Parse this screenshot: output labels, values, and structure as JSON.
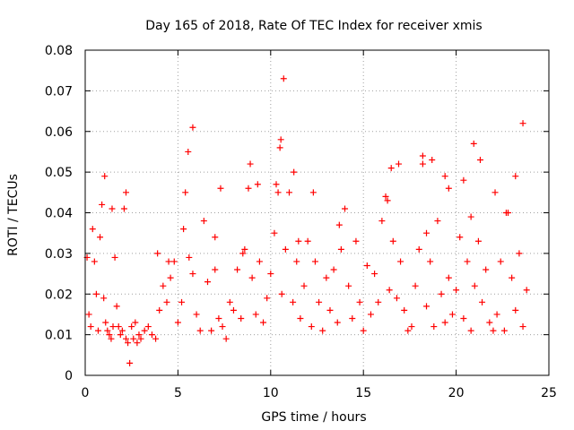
{
  "chart_data": {
    "type": "scatter",
    "title": "Day 165 of 2018, Rate Of TEC Index for receiver xmis",
    "xlabel": "GPS time / hours",
    "ylabel": "ROTI / TECUs",
    "xlim": [
      0,
      25
    ],
    "ylim": [
      0,
      0.08
    ],
    "x_ticks": [
      0,
      5,
      10,
      15,
      20,
      25
    ],
    "x_tick_labels": [
      "0",
      "5",
      "10",
      "15",
      "20",
      "25"
    ],
    "y_ticks": [
      0,
      0.01,
      0.02,
      0.03,
      0.04,
      0.05,
      0.06,
      0.07,
      0.08
    ],
    "y_tick_labels": [
      "0",
      "0.01",
      "0.02",
      "0.03",
      "0.04",
      "0.05",
      "0.06",
      "0.07",
      "0.08"
    ],
    "grid": true,
    "marker": "plus",
    "marker_color": "#ff0000",
    "series": [
      {
        "name": "ROTI",
        "x": [
          0.1,
          0.2,
          0.3,
          0.4,
          0.5,
          0.6,
          0.7,
          0.8,
          0.9,
          1.0,
          1.1,
          1.2,
          1.3,
          1.4,
          1.5,
          1.6,
          1.7,
          1.8,
          1.9,
          2.0,
          2.1,
          2.2,
          2.3,
          2.4,
          2.5,
          2.6,
          2.7,
          2.8,
          2.9,
          3.0,
          3.2,
          3.4,
          3.6,
          3.8,
          4.0,
          4.2,
          4.4,
          4.6,
          4.8,
          5.0,
          5.2,
          5.4,
          5.6,
          5.8,
          6.0,
          6.2,
          6.4,
          6.6,
          6.8,
          7.0,
          7.2,
          7.4,
          7.6,
          7.8,
          8.0,
          8.2,
          8.4,
          8.6,
          8.8,
          9.0,
          9.2,
          9.4,
          9.6,
          9.8,
          10.0,
          10.2,
          10.4,
          10.5,
          10.6,
          10.8,
          11.0,
          11.2,
          11.4,
          11.6,
          11.8,
          12.0,
          12.2,
          12.4,
          12.6,
          12.8,
          13.0,
          13.2,
          13.4,
          13.6,
          13.8,
          14.0,
          14.2,
          14.4,
          14.6,
          14.8,
          15.0,
          15.2,
          15.4,
          15.6,
          15.8,
          16.0,
          16.2,
          16.4,
          16.6,
          16.8,
          17.0,
          17.2,
          17.4,
          17.6,
          17.8,
          18.0,
          18.2,
          18.4,
          18.6,
          18.8,
          19.0,
          19.2,
          19.4,
          19.6,
          19.8,
          20.0,
          20.2,
          20.4,
          20.6,
          20.8,
          21.0,
          21.2,
          21.4,
          21.6,
          21.8,
          22.0,
          22.2,
          22.4,
          22.6,
          22.8,
          23.0,
          23.2,
          23.4,
          23.6,
          23.8,
          1.05,
          1.45,
          2.2,
          5.55,
          5.8,
          8.9,
          10.55,
          10.7,
          11.25,
          12.3,
          16.5,
          18.2,
          18.7,
          19.4,
          20.4,
          20.95,
          21.3,
          22.7,
          23.2,
          3.9,
          4.5,
          5.3,
          7.0,
          7.3,
          8.5,
          9.3,
          10.3,
          11.5,
          13.7,
          16.3,
          16.9,
          18.4,
          19.6,
          20.8,
          22.1,
          23.6
        ],
        "y": [
          0.029,
          0.015,
          0.012,
          0.036,
          0.028,
          0.02,
          0.011,
          0.034,
          0.042,
          0.019,
          0.013,
          0.011,
          0.01,
          0.009,
          0.012,
          0.029,
          0.017,
          0.012,
          0.01,
          0.011,
          0.041,
          0.009,
          0.008,
          0.003,
          0.012,
          0.009,
          0.013,
          0.008,
          0.01,
          0.009,
          0.011,
          0.012,
          0.01,
          0.009,
          0.016,
          0.022,
          0.018,
          0.024,
          0.028,
          0.013,
          0.018,
          0.045,
          0.029,
          0.025,
          0.015,
          0.011,
          0.038,
          0.023,
          0.011,
          0.026,
          0.014,
          0.012,
          0.009,
          0.018,
          0.016,
          0.026,
          0.014,
          0.031,
          0.046,
          0.024,
          0.015,
          0.028,
          0.013,
          0.019,
          0.025,
          0.035,
          0.045,
          0.056,
          0.02,
          0.031,
          0.045,
          0.018,
          0.028,
          0.014,
          0.022,
          0.033,
          0.012,
          0.028,
          0.018,
          0.011,
          0.024,
          0.016,
          0.026,
          0.013,
          0.031,
          0.041,
          0.022,
          0.014,
          0.033,
          0.018,
          0.011,
          0.027,
          0.015,
          0.025,
          0.018,
          0.038,
          0.044,
          0.021,
          0.033,
          0.019,
          0.028,
          0.016,
          0.011,
          0.012,
          0.022,
          0.031,
          0.052,
          0.017,
          0.028,
          0.012,
          0.038,
          0.02,
          0.013,
          0.024,
          0.015,
          0.021,
          0.034,
          0.014,
          0.028,
          0.011,
          0.022,
          0.033,
          0.018,
          0.026,
          0.013,
          0.011,
          0.015,
          0.028,
          0.011,
          0.04,
          0.024,
          0.016,
          0.03,
          0.012,
          0.021,
          0.049,
          0.041,
          0.045,
          0.055,
          0.061,
          0.052,
          0.058,
          0.073,
          0.05,
          0.045,
          0.051,
          0.054,
          0.053,
          0.049,
          0.048,
          0.057,
          0.053,
          0.04,
          0.049,
          0.03,
          0.028,
          0.036,
          0.034,
          0.046,
          0.03,
          0.047,
          0.047,
          0.033,
          0.037,
          0.043,
          0.052,
          0.035,
          0.046,
          0.039,
          0.045,
          0.062
        ]
      }
    ]
  }
}
